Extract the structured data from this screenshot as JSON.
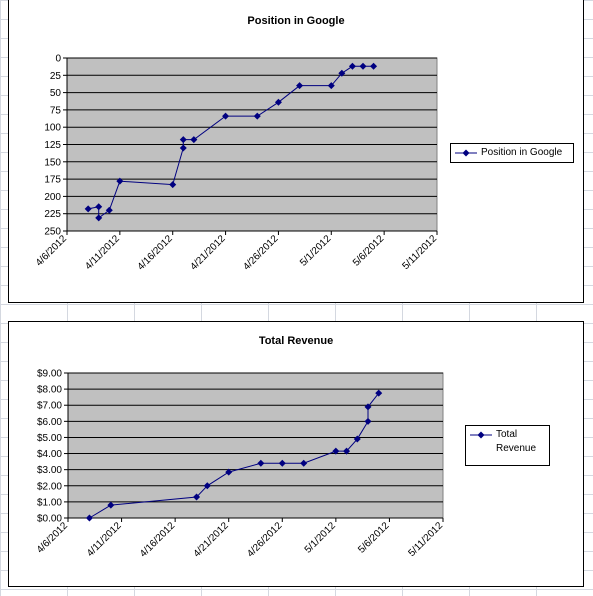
{
  "chart_data": [
    {
      "type": "line",
      "title": "Position in Google",
      "x": [
        "4/8/2012",
        "4/9/2012",
        "4/9/2012",
        "4/10/2012",
        "4/11/2012",
        "4/16/2012",
        "4/17/2012",
        "4/17/2012",
        "4/18/2012",
        "4/21/2012",
        "4/24/2012",
        "4/26/2012",
        "4/28/2012",
        "5/1/2012",
        "5/2/2012",
        "5/3/2012",
        "5/4/2012",
        "5/5/2012"
      ],
      "series": [
        {
          "name": "Position in Google",
          "color": "#000080",
          "values": [
            218,
            215,
            231,
            220,
            178,
            183,
            130,
            118,
            118,
            84,
            84,
            64,
            40,
            40,
            22,
            12,
            12,
            12
          ]
        }
      ],
      "xlim": [
        "4/6/2012",
        "5/11/2012"
      ],
      "xticks": [
        "4/6/2012",
        "4/11/2012",
        "4/16/2012",
        "4/21/2012",
        "4/26/2012",
        "5/1/2012",
        "5/6/2012",
        "5/11/2012"
      ],
      "ylim": [
        0,
        250
      ],
      "y_reversed": true,
      "yticks": [
        0,
        25,
        50,
        75,
        100,
        125,
        150,
        175,
        200,
        225,
        250
      ],
      "grid": true,
      "legend": "right"
    },
    {
      "type": "line",
      "title": "Total Revenue",
      "x": [
        "4/8/2012",
        "4/10/2012",
        "4/18/2012",
        "4/19/2012",
        "4/21/2012",
        "4/24/2012",
        "4/26/2012",
        "4/28/2012",
        "5/1/2012",
        "5/2/2012",
        "5/3/2012",
        "5/4/2012",
        "5/4/2012",
        "5/5/2012"
      ],
      "series": [
        {
          "name": "Total Revenue",
          "color": "#000080",
          "values": [
            0,
            0.8,
            1.3,
            2.0,
            2.85,
            3.4,
            3.4,
            3.4,
            4.15,
            4.15,
            4.9,
            6.0,
            6.9,
            7.75
          ]
        }
      ],
      "xlim": [
        "4/6/2012",
        "5/11/2012"
      ],
      "xticks": [
        "4/6/2012",
        "4/11/2012",
        "4/16/2012",
        "4/21/2012",
        "4/26/2012",
        "5/1/2012",
        "5/6/2012",
        "5/11/2012"
      ],
      "ylim": [
        0,
        9
      ],
      "y_reversed": false,
      "yticks": [
        {
          "value": 0,
          "label": "$0.00"
        },
        {
          "value": 1,
          "label": "$1.00"
        },
        {
          "value": 2,
          "label": "$2.00"
        },
        {
          "value": 3,
          "label": "$3.00"
        },
        {
          "value": 4,
          "label": "$4.00"
        },
        {
          "value": 5,
          "label": "$5.00"
        },
        {
          "value": 6,
          "label": "$6.00"
        },
        {
          "value": 7,
          "label": "$7.00"
        },
        {
          "value": 8,
          "label": "$8.00"
        },
        {
          "value": 9,
          "label": "$9.00"
        }
      ],
      "grid": true,
      "legend": "right"
    }
  ]
}
